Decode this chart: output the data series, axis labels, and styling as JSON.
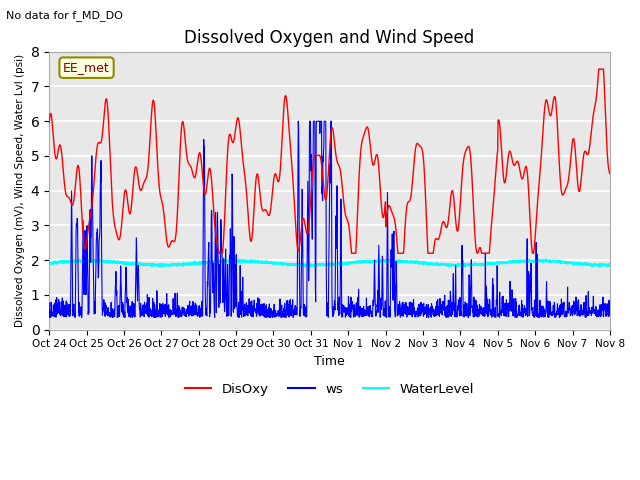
{
  "title": "Dissolved Oxygen and Wind Speed",
  "xlabel": "Time",
  "ylabel": "Dissolved Oxygen (mV), Wind Speed, Water Lvl (psi)",
  "top_left_text": "No data for f_MD_DO",
  "annotation_box": "EE_met",
  "ylim": [
    0.0,
    8.0
  ],
  "yticks": [
    0.0,
    1.0,
    2.0,
    3.0,
    4.0,
    5.0,
    6.0,
    7.0,
    8.0
  ],
  "xtick_labels": [
    "Oct 24",
    "Oct 25",
    "Oct 26",
    "Oct 27",
    "Oct 28",
    "Oct 29",
    "Oct 30",
    "Oct 31",
    "Nov 1",
    "Nov 2",
    "Nov 3",
    "Nov 4",
    "Nov 5",
    "Nov 6",
    "Nov 7",
    "Nov 8"
  ],
  "line_colors": {
    "DisOxy": "red",
    "ws": "blue",
    "WaterLevel": "cyan"
  },
  "line_widths": {
    "DisOxy": 1.0,
    "ws": 0.8,
    "WaterLevel": 1.5
  },
  "axes_facecolor": "#e8e8e8",
  "grid_color": "white",
  "figsize": [
    6.4,
    4.8
  ],
  "dpi": 100
}
